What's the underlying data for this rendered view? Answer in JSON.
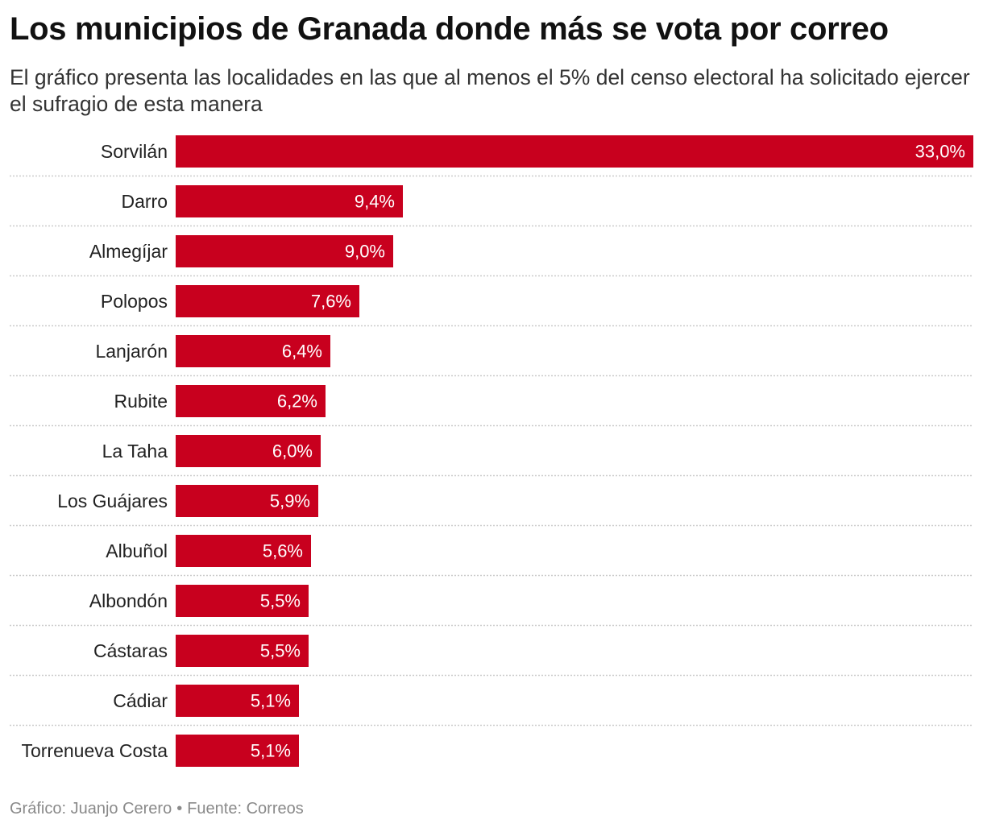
{
  "title": "Los municipios de Granada donde más se vota por correo",
  "subtitle": "El gráfico presenta las localidades en las que al menos el 5% del censo electoral ha solicitado ejercer el sufragio de esta manera",
  "footer": {
    "credit": "Gráfico: Juanjo Cerero",
    "separator": "•",
    "source": "Fuente: Correos"
  },
  "colors": {
    "bar": "#c8001e",
    "bar_label": "#ffffff",
    "category_label": "#222222",
    "divider": "#cccccc"
  },
  "chart_data": {
    "type": "bar",
    "orientation": "horizontal",
    "title": "Los municipios de Granada donde más se vota por correo",
    "xlabel": "",
    "ylabel": "",
    "unit": "%",
    "xlim": [
      0,
      33.0
    ],
    "grid": false,
    "legend": "none",
    "categories": [
      "Sorvilán",
      "Darro",
      "Almegíjar",
      "Polopos",
      "Lanjarón",
      "Rubite",
      "La Taha",
      "Los Guájares",
      "Albuñol",
      "Albondón",
      "Cástaras",
      "Cádiar",
      "Torrenueva Costa"
    ],
    "values": [
      33.0,
      9.4,
      9.0,
      7.6,
      6.4,
      6.2,
      6.0,
      5.9,
      5.6,
      5.5,
      5.5,
      5.1,
      5.1
    ],
    "value_labels": [
      "33,0%",
      "9,4%",
      "9,0%",
      "7,6%",
      "6,4%",
      "6,2%",
      "6,0%",
      "5,9%",
      "5,6%",
      "5,5%",
      "5,5%",
      "5,1%",
      "5,1%"
    ]
  }
}
